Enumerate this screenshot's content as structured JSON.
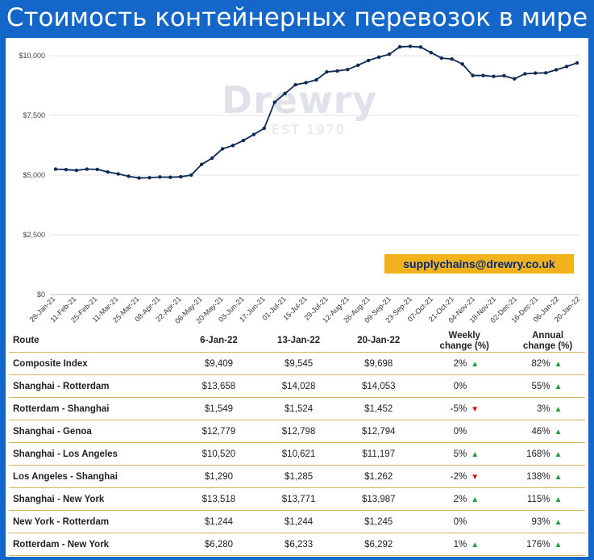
{
  "title": "Стоимость контейнерных перевозок в мире",
  "watermark": {
    "brand": "Drewry",
    "sub": "EST 1970"
  },
  "email": "supplychains@drewry.co.uk",
  "colors": {
    "frame": "#1466c8",
    "line": "#0e2a55",
    "badge": "#f2b21c",
    "up": "#20a040",
    "down": "#e01010"
  },
  "chart_data": {
    "type": "line",
    "y_ticks": [
      "$0",
      "$2,500",
      "$5,000",
      "$7,500",
      "$10,000"
    ],
    "ylim": [
      0,
      10000
    ],
    "grid": true,
    "x_ticks": [
      "28-Jan-21",
      "11-Feb-21",
      "25-Feb-21",
      "11-Mar-21",
      "25-Mar-21",
      "08-Apr-21",
      "22-Apr-21",
      "06-May-21",
      "20-May-21",
      "03-Jun-21",
      "17-Jun-21",
      "01-Jul-21",
      "15-Jul-21",
      "29-Jul-21",
      "12-Aug-21",
      "26-Aug-21",
      "09-Sep-21",
      "23-Sep-21",
      "07-Oct-21",
      "21-Oct-21",
      "04-Nov-21",
      "18-Nov-21",
      "02-Dec-21",
      "16-Dec-21",
      "06-Jan-22",
      "20-Jan-22"
    ],
    "series": [
      {
        "values": [
          5250,
          5230,
          5200,
          5250,
          5240,
          5130,
          5050,
          4950,
          4880,
          4890,
          4920,
          4910,
          4930,
          5000,
          5450,
          5710,
          6100,
          6240,
          6450,
          6700,
          6960,
          8050,
          8420,
          8780,
          8870,
          8990,
          9320,
          9360,
          9420,
          9600,
          9800,
          9940,
          10060,
          10370,
          10390,
          10360,
          10130,
          9900,
          9860,
          9650,
          9170,
          9170,
          9130,
          9160,
          9030,
          9240,
          9270,
          9280,
          9409,
          9545,
          9698
        ]
      }
    ]
  },
  "table": {
    "headers": [
      "Route",
      "6-Jan-22",
      "13-Jan-22",
      "20-Jan-22",
      "Weekly change (%)",
      "Annual change (%)"
    ],
    "rows": [
      {
        "route": "Composite Index",
        "c1": "$9,409",
        "c2": "$9,545",
        "c3": "$9,698",
        "weekly": "2%",
        "weekly_dir": "up",
        "annual": "82%",
        "annual_dir": "up"
      },
      {
        "route": "Shanghai - Rotterdam",
        "c1": "$13,658",
        "c2": "$14,028",
        "c3": "$14,053",
        "weekly": "0%",
        "weekly_dir": "none",
        "annual": "55%",
        "annual_dir": "up"
      },
      {
        "route": "Rotterdam - Shanghai",
        "c1": "$1,549",
        "c2": "$1,524",
        "c3": "$1,452",
        "weekly": "-5%",
        "weekly_dir": "down",
        "annual": "3%",
        "annual_dir": "up"
      },
      {
        "route": "Shanghai - Genoa",
        "c1": "$12,779",
        "c2": "$12,798",
        "c3": "$12,794",
        "weekly": "0%",
        "weekly_dir": "none",
        "annual": "46%",
        "annual_dir": "up"
      },
      {
        "route": "Shanghai - Los Angeles",
        "c1": "$10,520",
        "c2": "$10,621",
        "c3": "$11,197",
        "weekly": "5%",
        "weekly_dir": "up",
        "annual": "168%",
        "annual_dir": "up"
      },
      {
        "route": "Los Angeles - Shanghai",
        "c1": "$1,290",
        "c2": "$1,285",
        "c3": "$1,262",
        "weekly": "-2%",
        "weekly_dir": "down",
        "annual": "138%",
        "annual_dir": "up"
      },
      {
        "route": "Shanghai - New York",
        "c1": "$13,518",
        "c2": "$13,771",
        "c3": "$13,987",
        "weekly": "2%",
        "weekly_dir": "up",
        "annual": "115%",
        "annual_dir": "up"
      },
      {
        "route": "New York - Rotterdam",
        "c1": "$1,244",
        "c2": "$1,244",
        "c3": "$1,245",
        "weekly": "0%",
        "weekly_dir": "none",
        "annual": "93%",
        "annual_dir": "up"
      },
      {
        "route": "Rotterdam - New York",
        "c1": "$6,280",
        "c2": "$6,233",
        "c3": "$6,292",
        "weekly": "1%",
        "weekly_dir": "up",
        "annual": "176%",
        "annual_dir": "up"
      }
    ]
  }
}
